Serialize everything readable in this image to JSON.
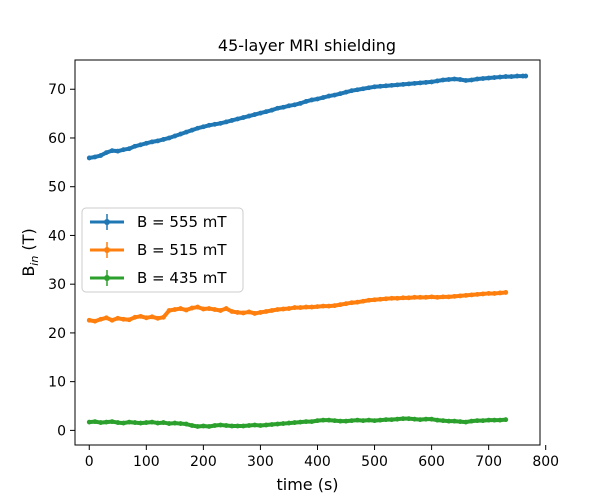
{
  "chart_data": {
    "type": "line",
    "title": "45-layer MRI shielding",
    "xlabel": "time (s)",
    "ylabel": "B",
    "ylabel_sub": "in",
    "ylabel_unit": " (T)",
    "xlim": [
      -25,
      790
    ],
    "ylim": [
      -3,
      76
    ],
    "xticks": [
      0,
      100,
      200,
      300,
      400,
      500,
      600,
      700,
      800
    ],
    "yticks": [
      0,
      10,
      20,
      30,
      40,
      50,
      60,
      70
    ],
    "grid": false,
    "legend_position": "center-left",
    "series": [
      {
        "name": "B = 555 mT",
        "color": "#1f77b4",
        "x": [
          0,
          10,
          20,
          30,
          40,
          50,
          60,
          70,
          80,
          90,
          100,
          110,
          120,
          130,
          140,
          150,
          160,
          170,
          180,
          190,
          200,
          210,
          220,
          230,
          240,
          250,
          260,
          270,
          280,
          290,
          300,
          310,
          320,
          330,
          340,
          350,
          360,
          370,
          380,
          390,
          400,
          410,
          420,
          430,
          440,
          450,
          460,
          470,
          480,
          490,
          500,
          510,
          520,
          530,
          540,
          550,
          560,
          570,
          580,
          590,
          600,
          610,
          620,
          630,
          640,
          650,
          660,
          670,
          680,
          690,
          700,
          710,
          720,
          730,
          740,
          750,
          760,
          765
        ],
        "y": [
          55.9,
          56.1,
          56.4,
          57.0,
          57.4,
          57.3,
          57.6,
          57.8,
          58.3,
          58.6,
          58.9,
          59.2,
          59.4,
          59.7,
          60.0,
          60.4,
          60.8,
          61.2,
          61.6,
          62.0,
          62.3,
          62.6,
          62.8,
          63.0,
          63.3,
          63.6,
          63.9,
          64.2,
          64.5,
          64.8,
          65.1,
          65.4,
          65.7,
          66.1,
          66.3,
          66.6,
          66.8,
          67.1,
          67.5,
          67.8,
          68.0,
          68.3,
          68.6,
          68.8,
          69.1,
          69.4,
          69.7,
          69.9,
          70.1,
          70.3,
          70.5,
          70.6,
          70.7,
          70.8,
          70.9,
          71.0,
          71.1,
          71.2,
          71.3,
          71.4,
          71.5,
          71.7,
          71.9,
          72.0,
          72.1,
          72.0,
          71.8,
          71.9,
          72.1,
          72.2,
          72.3,
          72.4,
          72.5,
          72.6,
          72.6,
          72.7,
          72.7,
          72.7
        ]
      },
      {
        "name": "B = 515 mT",
        "color": "#ff7f0e",
        "x": [
          0,
          10,
          20,
          30,
          40,
          50,
          60,
          70,
          80,
          90,
          100,
          110,
          120,
          130,
          140,
          150,
          160,
          170,
          180,
          190,
          200,
          210,
          220,
          230,
          240,
          250,
          260,
          270,
          280,
          290,
          300,
          310,
          320,
          330,
          340,
          350,
          360,
          370,
          380,
          390,
          400,
          410,
          420,
          430,
          440,
          450,
          460,
          470,
          480,
          490,
          500,
          510,
          520,
          530,
          540,
          550,
          560,
          570,
          580,
          590,
          600,
          610,
          620,
          630,
          640,
          650,
          660,
          670,
          680,
          690,
          700,
          710,
          720,
          730
        ],
        "y": [
          22.6,
          22.4,
          22.8,
          23.1,
          22.6,
          23.0,
          22.8,
          22.7,
          23.2,
          23.4,
          23.1,
          23.3,
          23.0,
          23.2,
          24.6,
          24.8,
          25.0,
          24.7,
          25.1,
          25.3,
          24.9,
          25.0,
          24.8,
          24.6,
          25.0,
          24.4,
          24.2,
          24.1,
          24.3,
          24.0,
          24.2,
          24.4,
          24.6,
          24.8,
          24.9,
          25.0,
          25.2,
          25.2,
          25.3,
          25.3,
          25.4,
          25.5,
          25.5,
          25.6,
          25.8,
          26.0,
          26.2,
          26.3,
          26.5,
          26.7,
          26.8,
          26.9,
          27.0,
          27.1,
          27.1,
          27.2,
          27.2,
          27.3,
          27.3,
          27.3,
          27.4,
          27.3,
          27.4,
          27.4,
          27.5,
          27.6,
          27.7,
          27.8,
          27.9,
          28.0,
          28.1,
          28.1,
          28.2,
          28.3
        ]
      },
      {
        "name": "B = 435 mT",
        "color": "#2ca02c",
        "x": [
          0,
          10,
          20,
          30,
          40,
          50,
          60,
          70,
          80,
          90,
          100,
          110,
          120,
          130,
          140,
          150,
          160,
          170,
          180,
          190,
          200,
          210,
          220,
          230,
          240,
          250,
          260,
          270,
          280,
          290,
          300,
          310,
          320,
          330,
          340,
          350,
          360,
          370,
          380,
          390,
          400,
          410,
          420,
          430,
          440,
          450,
          460,
          470,
          480,
          490,
          500,
          510,
          520,
          530,
          540,
          550,
          560,
          570,
          580,
          590,
          600,
          610,
          620,
          630,
          640,
          650,
          660,
          670,
          680,
          690,
          700,
          710,
          720,
          730
        ],
        "y": [
          1.7,
          1.8,
          1.6,
          1.7,
          1.8,
          1.6,
          1.5,
          1.7,
          1.6,
          1.5,
          1.6,
          1.7,
          1.5,
          1.6,
          1.4,
          1.5,
          1.4,
          1.3,
          1.0,
          0.8,
          0.9,
          0.8,
          1.0,
          1.1,
          1.0,
          0.9,
          0.9,
          0.9,
          1.0,
          1.1,
          1.0,
          1.1,
          1.2,
          1.3,
          1.4,
          1.5,
          1.6,
          1.7,
          1.8,
          1.8,
          2.0,
          2.1,
          2.1,
          2.0,
          1.9,
          1.9,
          2.0,
          2.1,
          2.0,
          2.1,
          2.0,
          2.1,
          2.2,
          2.2,
          2.3,
          2.4,
          2.4,
          2.3,
          2.2,
          2.3,
          2.3,
          2.1,
          2.0,
          1.9,
          1.9,
          1.8,
          1.7,
          1.9,
          2.0,
          2.0,
          2.1,
          2.1,
          2.1,
          2.2
        ]
      }
    ]
  }
}
